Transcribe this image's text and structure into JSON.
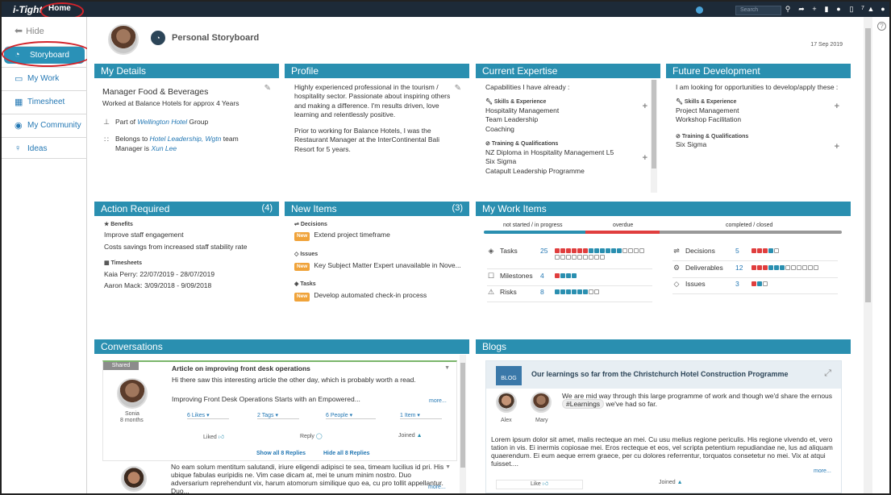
{
  "topbar": {
    "logo": "i-Tight",
    "home": "Home",
    "search_placeholder": "Search",
    "notif_count": "7"
  },
  "sidebar": {
    "hide": "Hide",
    "items": [
      {
        "label": "Storyboard"
      },
      {
        "label": "My Work"
      },
      {
        "label": "Timesheet"
      },
      {
        "label": "My Community"
      },
      {
        "label": "Ideas"
      }
    ]
  },
  "header": {
    "title": "Personal Storyboard",
    "date": "17 Sep 2019"
  },
  "my_details": {
    "title": "My Details",
    "role": "Manager Food & Beverages",
    "worked": "Worked at Balance Hotels for approx 4 Years",
    "part_pre": "Part of",
    "part_link": "Wellington Hotel",
    "part_post": "Group",
    "belongs_pre": "Belongs to",
    "belongs_link": "Hotel Leadership, Wgtn",
    "belongs_post": "team",
    "manager_pre": "Manager is",
    "manager_link": "Xun Lee"
  },
  "profile": {
    "title": "Profile",
    "p1": "Highly experienced professional in the tourism / hospitality sector.   Passionate about inspiring others and making a difference. I'm results driven, love learning and relentlessly positive.",
    "p2": "Prior to working for Balance Hotels, I was the Restaurant Manager at the InterContinental Bali Resort for 5 years."
  },
  "expertise": {
    "title": "Current Expertise",
    "intro": "Capabilities I have already :",
    "skills_label": "Skills & Experience",
    "skills": [
      "Hospitality Management",
      "Team Leadership",
      "Coaching"
    ],
    "training_label": "Training & Qualifications",
    "training": [
      "NZ Diploma in Hospitality Management L5",
      "Six Sigma",
      "Catapult Leadership Programme"
    ]
  },
  "future": {
    "title": "Future Development",
    "intro": "I am looking for opportunities to develop/apply these :",
    "skills_label": "Skills & Experience",
    "skills": [
      "Project Management",
      "Workshop Facilitation"
    ],
    "training_label": "Training & Qualifications",
    "training": [
      "Six Sigma"
    ]
  },
  "action": {
    "title": "Action Required",
    "count": "(4)",
    "benefits_label": "Benefits",
    "benefits": [
      "Improve staff engagement",
      "Costs savings from increased staff stability rate"
    ],
    "timesheets_label": "Timesheets",
    "timesheets": [
      "Kaia Perry: 22/07/2019 - 28/07/2019",
      "Aaron Mack: 3/09/2018 - 9/09/2018"
    ]
  },
  "new_items": {
    "title": "New Items",
    "count": "(3)",
    "tag": "New",
    "groups": [
      {
        "label": "Decisions",
        "item": "Extend project timeframe"
      },
      {
        "label": "Issues",
        "item": "Key Subject Matter Expert unavailable in Nove..."
      },
      {
        "label": "Tasks",
        "item": "Develop automated check-in process"
      }
    ]
  },
  "work_items": {
    "title": "My Work Items",
    "legend": [
      "not started / in progress",
      "overdue",
      "completed / closed"
    ],
    "colors": {
      "not_started": "#2a8fb0",
      "overdue": "#e03e3e",
      "completed": "#999999"
    },
    "left": [
      {
        "label": "Tasks",
        "count": "25",
        "bars": {
          "r": 6,
          "b": 6,
          "g": 13
        }
      },
      {
        "label": "Milestones",
        "count": "4",
        "bars": {
          "r": 1,
          "b": 3,
          "g": 0
        }
      },
      {
        "label": "Risks",
        "count": "8",
        "bars": {
          "r": 0,
          "b": 6,
          "g": 2
        }
      }
    ],
    "right": [
      {
        "label": "Decisions",
        "count": "5",
        "bars": {
          "r": 3,
          "b": 1,
          "g": 1
        }
      },
      {
        "label": "Deliverables",
        "count": "12",
        "bars": {
          "r": 3,
          "b": 3,
          "g": 6
        }
      },
      {
        "label": "Issues",
        "count": "3",
        "bars": {
          "r": 1,
          "b": 1,
          "g": 1
        }
      }
    ]
  },
  "conversations": {
    "title": "Conversations",
    "shared": "Shared",
    "post1": {
      "title": "Article on improving front desk operations",
      "body": "Hi there saw this interesting article the other day, which is probably worth a read.",
      "article": "Improving Front Desk Operations Starts with an Empowered...",
      "more": "more...",
      "author": "Sonia",
      "age": "8 months",
      "likes": "6 Likes",
      "tags": "2 Tags",
      "people": "6 People",
      "items": "1 Item",
      "liked": "Liked",
      "reply": "Reply",
      "joined": "Joined",
      "show_all": "Show all 8 Replies",
      "hide_all": "Hide all 8 Replies"
    },
    "post2": {
      "body": "No eam solum mentitum salutandi, iriure eligendi adipisci te sea, timeam lucilius id pri. His ubique fabulas euripidis ne. Vim case dicam at, mei te unum minim nostro. Duo adversarium reprehendunt vix, harum atomorum similique quo ea, cu pro tollit appellantur. Duo...",
      "more": "more..."
    }
  },
  "blogs": {
    "title": "Blogs",
    "badge": "BLOG",
    "post_title": "Our learnings so far from the Christchurch Hotel Construction Programme",
    "intro_pre": "We are mid way through this large programme of work and though we'd share the ernous",
    "hashtag": "#Learnings",
    "intro_post": "we've had so far.",
    "body": "Lorem ipsum dolor sit amet, malis recteque an mei. Cu usu melius regione periculis. His regione vivendo et, vero tation in vis. Ei inermis copiosae mei. Eros recteque et eos, vel scripta petentium repudiandae ne, lus ad aliquam quaerendum. Ei eum aeque errem graece, per cu dolores referrentur, torquatos consetetur no mei. Vix at atqui fuisset....",
    "more": "more...",
    "author1": "Alex",
    "author2": "Mary",
    "like": "Like",
    "joined": "Joined"
  }
}
